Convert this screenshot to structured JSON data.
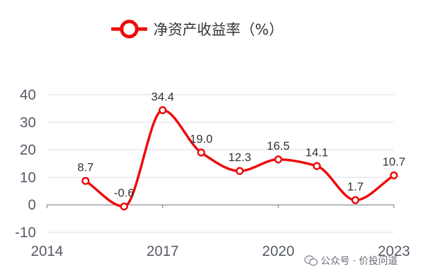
{
  "chart_data": {
    "type": "line",
    "x": [
      2015,
      2016,
      2017,
      2018,
      2019,
      2020,
      2021,
      2022,
      2023
    ],
    "series": [
      {
        "name": "净资产收益率（%）",
        "values": [
          8.7,
          -0.6,
          34.4,
          19.0,
          12.3,
          16.5,
          14.1,
          1.7,
          10.7
        ],
        "labels": [
          "8.7",
          "-0.6",
          "34.4",
          "19.0",
          "12.3",
          "16.5",
          "14.1",
          "1.7",
          "10.7"
        ],
        "color": "#ee0a0a"
      }
    ],
    "x_ticks": [
      2014,
      2017,
      2020,
      2023
    ],
    "x_tick_labels": [
      "2014",
      "2017",
      "2020",
      "2023"
    ],
    "y_ticks": [
      -10,
      0,
      10,
      20,
      30,
      40
    ],
    "y_tick_labels": [
      "-10",
      "0",
      "10",
      "20",
      "30",
      "40"
    ],
    "xlim": [
      2014,
      2023
    ],
    "ylim": [
      -10,
      40
    ],
    "grid": true,
    "legend_position": "top-center",
    "smooth": true
  },
  "watermark": {
    "text": "公众号 · 价投问道",
    "icon": "wechat-icon"
  }
}
